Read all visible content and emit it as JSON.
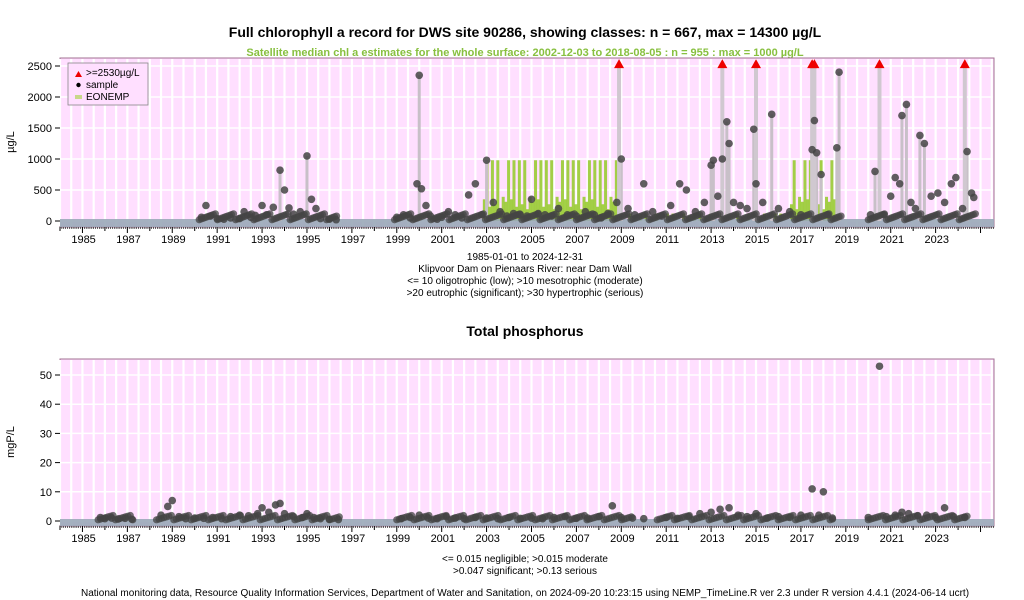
{
  "chart_data": [
    {
      "type": "scatter",
      "title": "Full chlorophyll a record for DWS site 90286, showing classes: n = 667, max = 14300 µg/L",
      "subtitle": "Satellite median chl a estimates for the whole surface: 2002-12-03 to 2018-08-05 : n = 955 : max = 1000 µg/L",
      "ylabel": "µg/L",
      "ylim": [
        0,
        2550
      ],
      "yticks": [
        0,
        500,
        1000,
        1500,
        2000,
        2500
      ],
      "xlim": [
        1984.0,
        2025.6
      ],
      "xticks": [
        "1985",
        "1987",
        "1989",
        "1991",
        "1993",
        "1995",
        "1997",
        "1999",
        "2001",
        "2003",
        "2005",
        "2007",
        "2009",
        "2011",
        "2013",
        "2015",
        "2017",
        "2019",
        "2021",
        "2023"
      ],
      "legend": {
        "position": "top-left",
        "entries": [
          {
            "label": ">=2530µg/L",
            "marker": "red-triangle"
          },
          {
            "label": "sample",
            "marker": "black-dot"
          },
          {
            "label": "EONEMP",
            "marker": "green-band"
          }
        ]
      },
      "caption": [
        "1985-01-01 to 2024-12-31",
        "Klipvoor Dam on Pienaars River: near Dam Wall",
        "<= 10 oligotrophic (low); >10 mesotrophic (moderate)",
        ">20 eutrophic (significant); >30 hypertrophic (serious)"
      ],
      "series": [
        {
          "name": "sample",
          "points": [
            [
              1990.3,
              60
            ],
            [
              1990.5,
              250
            ],
            [
              1990.7,
              80
            ],
            [
              1991.0,
              40
            ],
            [
              1991.3,
              30
            ],
            [
              1991.6,
              50
            ],
            [
              1992.0,
              40
            ],
            [
              1992.2,
              150
            ],
            [
              1992.5,
              60
            ],
            [
              1992.7,
              90
            ],
            [
              1993.0,
              250
            ],
            [
              1993.2,
              100
            ],
            [
              1993.5,
              220
            ],
            [
              1993.8,
              820
            ],
            [
              1994.0,
              500
            ],
            [
              1994.2,
              210
            ],
            [
              1994.4,
              110
            ],
            [
              1994.7,
              150
            ],
            [
              1995.0,
              1050
            ],
            [
              1995.2,
              350
            ],
            [
              1995.4,
              200
            ],
            [
              1995.6,
              40
            ],
            [
              1996.0,
              30
            ],
            [
              1996.3,
              20
            ],
            [
              1999.0,
              60
            ],
            [
              1999.3,
              100
            ],
            [
              1999.6,
              50
            ],
            [
              1999.9,
              600
            ],
            [
              2000.0,
              2350
            ],
            [
              2000.1,
              520
            ],
            [
              2000.3,
              250
            ],
            [
              2000.5,
              80
            ],
            [
              2000.8,
              30
            ],
            [
              2001.0,
              60
            ],
            [
              2001.3,
              150
            ],
            [
              2001.6,
              100
            ],
            [
              2001.9,
              50
            ],
            [
              2002.2,
              420
            ],
            [
              2002.5,
              600
            ],
            [
              2002.8,
              100
            ],
            [
              2003.0,
              980
            ],
            [
              2003.3,
              300
            ],
            [
              2003.6,
              150
            ],
            [
              2003.9,
              80
            ],
            [
              2004.2,
              120
            ],
            [
              2004.5,
              100
            ],
            [
              2004.8,
              80
            ],
            [
              2005.0,
              350
            ],
            [
              2005.3,
              120
            ],
            [
              2005.6,
              100
            ],
            [
              2005.9,
              80
            ],
            [
              2006.2,
              200
            ],
            [
              2006.6,
              100
            ],
            [
              2007.0,
              80
            ],
            [
              2007.4,
              150
            ],
            [
              2007.8,
              100
            ],
            [
              2008.1,
              50
            ],
            [
              2008.4,
              120
            ],
            [
              2008.8,
              300
            ],
            [
              2009.0,
              1000
            ],
            [
              2009.3,
              200
            ],
            [
              2009.6,
              100
            ],
            [
              2010.0,
              600
            ],
            [
              2010.4,
              150
            ],
            [
              2010.8,
              80
            ],
            [
              2011.2,
              250
            ],
            [
              2011.6,
              600
            ],
            [
              2011.9,
              500
            ],
            [
              2012.3,
              150
            ],
            [
              2012.7,
              300
            ],
            [
              2013.0,
              900
            ],
            [
              2013.1,
              980
            ],
            [
              2013.3,
              400
            ],
            [
              2013.5,
              1000
            ],
            [
              2013.7,
              1600
            ],
            [
              2013.8,
              1250
            ],
            [
              2014.0,
              300
            ],
            [
              2014.3,
              250
            ],
            [
              2014.6,
              200
            ],
            [
              2014.9,
              1480
            ],
            [
              2015.0,
              600
            ],
            [
              2015.3,
              300
            ],
            [
              2015.7,
              1720
            ],
            [
              2016.0,
              200
            ],
            [
              2016.5,
              150
            ],
            [
              2017.0,
              100
            ],
            [
              2017.5,
              1150
            ],
            [
              2017.6,
              1620
            ],
            [
              2017.7,
              1100
            ],
            [
              2017.9,
              750
            ],
            [
              2018.2,
              100
            ],
            [
              2018.6,
              1180
            ],
            [
              2018.7,
              2400
            ],
            [
              2020.1,
              100
            ],
            [
              2020.3,
              800
            ],
            [
              2020.7,
              100
            ],
            [
              2021.0,
              400
            ],
            [
              2021.2,
              700
            ],
            [
              2021.4,
              600
            ],
            [
              2021.5,
              1700
            ],
            [
              2021.7,
              1880
            ],
            [
              2021.9,
              300
            ],
            [
              2022.1,
              200
            ],
            [
              2022.3,
              1380
            ],
            [
              2022.5,
              1250
            ],
            [
              2022.8,
              400
            ],
            [
              2023.1,
              450
            ],
            [
              2023.4,
              300
            ],
            [
              2023.7,
              600
            ],
            [
              2023.9,
              700
            ],
            [
              2024.2,
              200
            ],
            [
              2024.4,
              1120
            ],
            [
              2024.6,
              450
            ],
            [
              2024.7,
              380
            ]
          ]
        },
        {
          "name": ">=2530µg/L",
          "points": [
            [
              2008.9,
              2530
            ],
            [
              2013.5,
              2530
            ],
            [
              2015.0,
              2530
            ],
            [
              2017.5,
              2530
            ],
            [
              2017.6,
              2530
            ],
            [
              2020.5,
              2530
            ],
            [
              2024.3,
              2530
            ]
          ]
        }
      ]
    },
    {
      "type": "scatter",
      "title": "Total phosphorus",
      "ylabel": "mgP/L",
      "ylim": [
        0,
        55
      ],
      "yticks": [
        0,
        10,
        20,
        30,
        40,
        50
      ],
      "xlim": [
        1984.0,
        2025.6
      ],
      "xticks": [
        "1985",
        "1987",
        "1989",
        "1991",
        "1993",
        "1995",
        "1997",
        "1999",
        "2001",
        "2003",
        "2005",
        "2007",
        "2009",
        "2011",
        "2013",
        "2015",
        "2017",
        "2019",
        "2021",
        "2023"
      ],
      "caption": [
        "<= 0.015 negligible; >0.015 moderate",
        ">0.047 significant; >0.13 serious"
      ],
      "series": [
        {
          "name": "sample",
          "points": [
            [
              1985.8,
              1.2
            ],
            [
              1986.0,
              0.8
            ],
            [
              1986.3,
              1.0
            ],
            [
              1986.6,
              0.7
            ],
            [
              1986.9,
              0.9
            ],
            [
              1987.2,
              0.6
            ],
            [
              1988.5,
              2.0
            ],
            [
              1988.8,
              5.0
            ],
            [
              1989.0,
              7.0
            ],
            [
              1989.3,
              1.5
            ],
            [
              1989.6,
              0.8
            ],
            [
              1990.0,
              1.0
            ],
            [
              1990.4,
              0.9
            ],
            [
              1990.8,
              1.2
            ],
            [
              1991.2,
              0.8
            ],
            [
              1991.6,
              1.5
            ],
            [
              1992.0,
              2.0
            ],
            [
              1992.4,
              1.8
            ],
            [
              1992.8,
              2.5
            ],
            [
              1993.0,
              4.5
            ],
            [
              1993.3,
              3.0
            ],
            [
              1993.6,
              5.5
            ],
            [
              1993.8,
              6.0
            ],
            [
              1994.0,
              2.5
            ],
            [
              1994.4,
              1.5
            ],
            [
              1994.8,
              1.2
            ],
            [
              1995.0,
              2.5
            ],
            [
              1995.3,
              1.2
            ],
            [
              1995.6,
              0.8
            ],
            [
              1996.0,
              0.6
            ],
            [
              1996.4,
              0.5
            ],
            [
              1999.2,
              0.8
            ],
            [
              1999.6,
              1.2
            ],
            [
              2000.0,
              2.0
            ],
            [
              2000.4,
              1.0
            ],
            [
              2000.8,
              0.8
            ],
            [
              2001.2,
              1.5
            ],
            [
              2001.6,
              1.0
            ],
            [
              2002.0,
              0.8
            ],
            [
              2002.5,
              1.2
            ],
            [
              2003.0,
              1.0
            ],
            [
              2003.5,
              0.8
            ],
            [
              2004.0,
              1.2
            ],
            [
              2004.5,
              0.9
            ],
            [
              2005.0,
              1.0
            ],
            [
              2005.5,
              0.8
            ],
            [
              2006.0,
              1.2
            ],
            [
              2006.5,
              1.5
            ],
            [
              2007.0,
              0.9
            ],
            [
              2007.5,
              1.0
            ],
            [
              2008.0,
              1.5
            ],
            [
              2008.6,
              5.2
            ],
            [
              2009.0,
              1.2
            ],
            [
              2009.5,
              1.0
            ],
            [
              2010.0,
              0.8
            ],
            [
              2011.0,
              1.2
            ],
            [
              2011.5,
              0.9
            ],
            [
              2012.0,
              1.5
            ],
            [
              2012.5,
              2.5
            ],
            [
              2013.0,
              3.0
            ],
            [
              2013.4,
              4.0
            ],
            [
              2013.8,
              4.5
            ],
            [
              2014.2,
              2.0
            ],
            [
              2014.6,
              1.5
            ],
            [
              2015.0,
              2.5
            ],
            [
              2015.5,
              1.0
            ],
            [
              2016.0,
              1.5
            ],
            [
              2016.5,
              1.2
            ],
            [
              2017.0,
              2.0
            ],
            [
              2017.5,
              11.0
            ],
            [
              2017.8,
              2.0
            ],
            [
              2018.0,
              10.0
            ],
            [
              2018.4,
              1.0
            ],
            [
              2020.0,
              1.2
            ],
            [
              2020.5,
              53.0
            ],
            [
              2020.8,
              1.5
            ],
            [
              2021.2,
              2.0
            ],
            [
              2021.5,
              3.0
            ],
            [
              2021.8,
              2.5
            ],
            [
              2022.2,
              1.8
            ],
            [
              2022.6,
              2.0
            ],
            [
              2023.0,
              1.2
            ],
            [
              2023.4,
              4.5
            ],
            [
              2023.8,
              1.5
            ],
            [
              2024.3,
              1.2
            ]
          ]
        }
      ]
    }
  ],
  "footer": "National monitoring data, Resource Quality Information Services, Department of Water and Sanitation, on 2024-09-20 10:23:15 using NEMP_TimeLine.R ver 2.3 under R version 4.4.1 (2024-06-14 ucrt)",
  "colors": {
    "panel_bg": "#ffdfff",
    "grid": "#ffffff",
    "frame": "#a07090",
    "point": "#444444",
    "satellite": "#99cc33",
    "alert": "#ee0000",
    "baseline": "#9aa8b8",
    "subtitle": "#88c040"
  }
}
